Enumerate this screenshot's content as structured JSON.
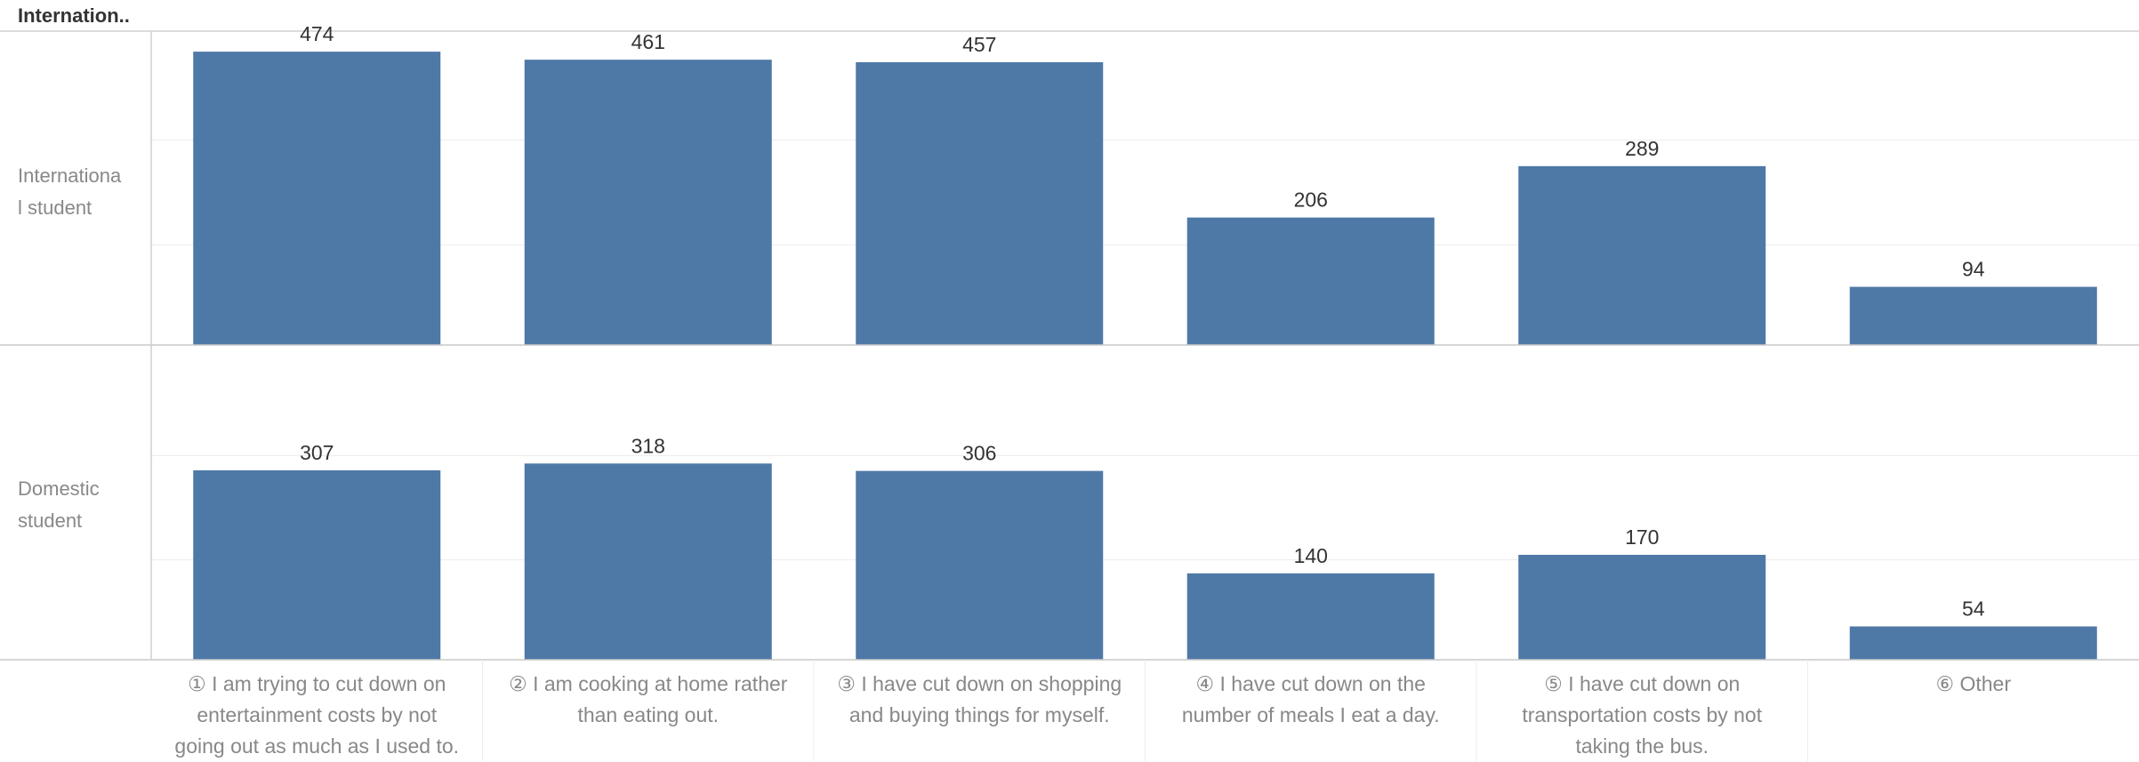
{
  "header": {
    "title": "Internation.."
  },
  "chart_data": {
    "type": "bar",
    "bar_color": "#4e79a7",
    "categories": [
      "① I am trying to cut down on entertainment costs by not going out as much as I used to.",
      "② I am cooking at home rather than eating out.",
      "③ I have cut down on shopping and buying things for myself.",
      "④ I have cut down on the number of meals I eat a day.",
      "⑤ I have cut down on transportation costs by not taking the bus.",
      "⑥ Other"
    ],
    "category_lines": [
      [
        "① I am trying to cut down on",
        "entertainment costs by not",
        "going out as much as I used to."
      ],
      [
        "② I am cooking at home rather",
        "than eating out."
      ],
      [
        "③ I have cut down on shopping",
        "and buying things for myself."
      ],
      [
        "④ I have cut down on the",
        "number of meals I eat a day."
      ],
      [
        "⑤ I have cut down on",
        "transportation costs by not",
        "taking the bus."
      ],
      [
        "⑥ Other"
      ]
    ],
    "rows": [
      {
        "label_lines": [
          "Internationa",
          "l student"
        ],
        "values": [
          474,
          461,
          457,
          206,
          289,
          94
        ]
      },
      {
        "label_lines": [
          "Domestic",
          "student"
        ],
        "values": [
          307,
          318,
          306,
          140,
          170,
          54
        ]
      }
    ],
    "gridlines": true,
    "legend": "none"
  }
}
